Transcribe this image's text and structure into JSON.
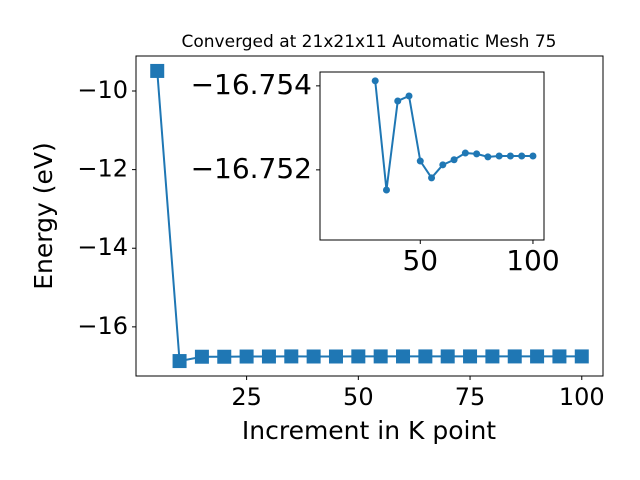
{
  "chart_data": [
    {
      "type": "line",
      "title": "Converged at 21x21x11 Automatic Mesh 75",
      "x_label": "Increment in K point",
      "y_label": "Energy (eV)",
      "x": [
        5,
        10,
        15,
        20,
        25,
        30,
        35,
        40,
        45,
        50,
        55,
        60,
        65,
        70,
        75,
        80,
        85,
        90,
        95,
        100
      ],
      "values": [
        -9.49,
        -16.87,
        -16.76,
        -16.76,
        -16.755,
        -16.754,
        -16.752,
        -16.754,
        -16.754,
        -16.752,
        -16.752,
        -16.752,
        -16.752,
        -16.752,
        -16.752,
        -16.752,
        -16.752,
        -16.752,
        -16.752,
        -16.752
      ],
      "color": "#1f77b4",
      "marker": "square",
      "xlim": [
        0.25,
        104.75
      ],
      "ylim": [
        -17.25,
        -9.11
      ],
      "xticks": [
        25,
        50,
        75,
        100
      ],
      "yticks": [
        {
          "value": -16,
          "label": "−16"
        },
        {
          "value": -14,
          "label": "−14"
        },
        {
          "value": -12,
          "label": "−12"
        },
        {
          "value": -10,
          "label": "−10"
        }
      ]
    },
    {
      "type": "line",
      "x": [
        30,
        35,
        40,
        45,
        50,
        55,
        60,
        65,
        70,
        75,
        80,
        85,
        90,
        95,
        100
      ],
      "values": [
        -16.75412,
        -16.75152,
        -16.75364,
        -16.75376,
        -16.75221,
        -16.75181,
        -16.75212,
        -16.75224,
        -16.7524,
        -16.75238,
        -16.75231,
        -16.75233,
        -16.75233,
        -16.75233,
        -16.75233
      ],
      "color": "#1f77b4",
      "marker": "circle",
      "xlim": [
        5.5,
        104.9
      ],
      "ylim": [
        -16.75033,
        -16.75433
      ],
      "xticks": [
        50,
        100
      ],
      "yticks": [
        {
          "value": -16.754,
          "label": "−16.754"
        },
        {
          "value": -16.752,
          "label": "−16.752"
        }
      ]
    }
  ]
}
